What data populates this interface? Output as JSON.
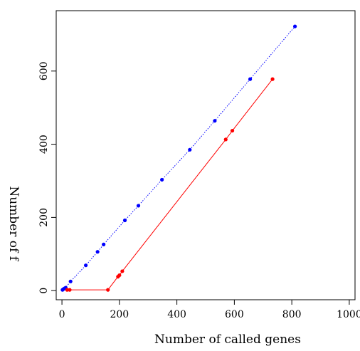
{
  "chart_data": {
    "type": "line",
    "title": "",
    "xlabel": "Number of called genes",
    "ylabel": "Number of f",
    "xlim": [
      -20,
      1020
    ],
    "ylim": [
      -25,
      765
    ],
    "xticks": [
      "0",
      "200",
      "400",
      "600",
      "800",
      "1000"
    ],
    "yticks": [
      "0",
      "200",
      "400",
      "600"
    ],
    "grid": false,
    "series": [
      {
        "color": "#0000ff",
        "line_style": "dotted",
        "points": [
          [
            2,
            2
          ],
          [
            5,
            4
          ],
          [
            9,
            6
          ],
          [
            13,
            8
          ],
          [
            30,
            25
          ],
          [
            83,
            69
          ],
          [
            124,
            106
          ],
          [
            145,
            126
          ],
          [
            219,
            192
          ],
          [
            266,
            232
          ],
          [
            348,
            303
          ],
          [
            445,
            385
          ],
          [
            532,
            464
          ],
          [
            655,
            578
          ],
          [
            811,
            722
          ]
        ]
      },
      {
        "color": "#ff0000",
        "line_style": "solid",
        "points": [
          [
            18,
            2
          ],
          [
            27,
            2
          ],
          [
            160,
            2
          ],
          [
            195,
            38
          ],
          [
            200,
            42
          ],
          [
            210,
            53
          ],
          [
            570,
            413
          ],
          [
            593,
            437
          ],
          [
            733,
            578
          ]
        ]
      }
    ]
  }
}
